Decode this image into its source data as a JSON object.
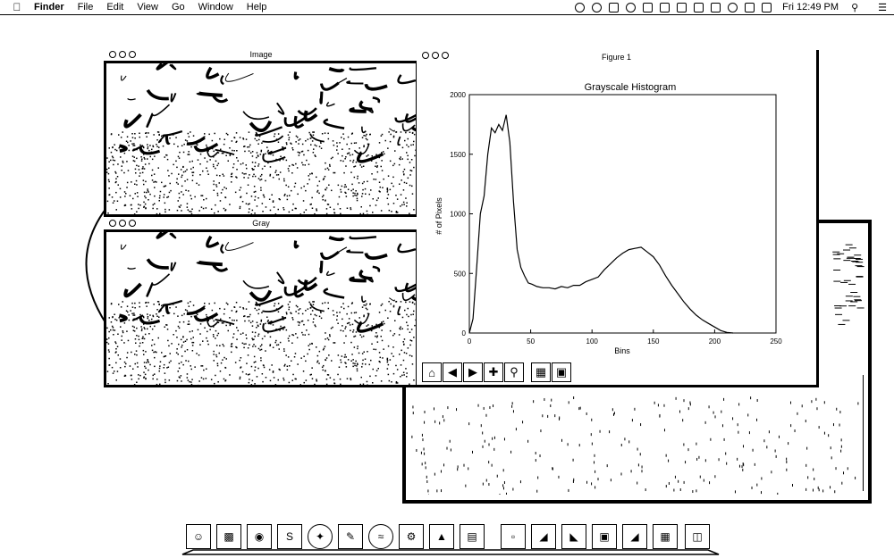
{
  "menubar": {
    "apple_icon": "apple-icon",
    "app_name": "Finder",
    "menus": [
      "File",
      "Edit",
      "View",
      "Go",
      "Window",
      "Help"
    ],
    "clock": "Fri 12:49 PM",
    "spotlight_icon": "search-icon"
  },
  "windows": {
    "image_title": "Image",
    "gray_title": "Gray",
    "figure_title": "Figure 1"
  },
  "chart_data": {
    "type": "line",
    "title": "Grayscale Histogram",
    "xlabel": "Bins",
    "ylabel": "# of Pixels",
    "xlim": [
      0,
      250
    ],
    "ylim": [
      0,
      2000
    ],
    "xticks": [
      "0",
      "50",
      "100",
      "150",
      "200",
      "250"
    ],
    "yticks": [
      "0",
      "500",
      "1000",
      "1500",
      "2000"
    ],
    "series": [
      {
        "x": [
          0,
          3,
          6,
          9,
          12,
          15,
          18,
          21,
          24,
          27,
          30,
          33,
          36,
          39,
          42,
          45,
          48,
          51,
          55,
          60,
          65,
          70,
          75,
          80,
          85,
          90,
          95,
          100,
          105,
          110,
          115,
          120,
          125,
          130,
          135,
          140,
          145,
          150,
          155,
          160,
          165,
          170,
          175,
          180,
          185,
          190,
          195,
          200,
          205,
          210,
          215
        ],
        "y": [
          0,
          120,
          550,
          1000,
          1150,
          1500,
          1720,
          1680,
          1750,
          1700,
          1830,
          1600,
          1100,
          700,
          550,
          480,
          420,
          410,
          390,
          380,
          380,
          370,
          390,
          380,
          400,
          400,
          430,
          450,
          470,
          530,
          580,
          630,
          670,
          700,
          710,
          720,
          680,
          640,
          570,
          480,
          400,
          330,
          260,
          200,
          150,
          110,
          80,
          50,
          20,
          5,
          0
        ]
      }
    ],
    "grid": false
  },
  "figure_toolbar": [
    {
      "icon": "home-icon"
    },
    {
      "icon": "back-icon"
    },
    {
      "icon": "forward-icon"
    },
    {
      "icon": "pan-icon"
    },
    {
      "icon": "zoom-icon"
    },
    {
      "icon": "configure-icon"
    },
    {
      "icon": "save-icon"
    }
  ],
  "dock": [
    "finder-icon",
    "terminal-icon",
    "preview-icon",
    "skype-icon",
    "safari-icon",
    "notes-icon",
    "spotify-icon",
    "system-preferences-icon",
    "photo-icon",
    "image-icon",
    "document-icon",
    "photo-icon",
    "image-icon",
    "image-icon",
    "image-icon",
    "calendar-icon",
    "trash-icon"
  ]
}
